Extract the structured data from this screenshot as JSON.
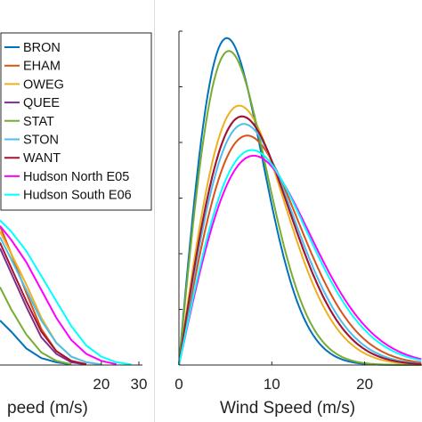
{
  "chart_data": [
    {
      "type": "line",
      "panel": "left (cropped)",
      "xlabel_visible": "peed (m/s)",
      "x_ticks": [
        "20",
        "30"
      ],
      "x_tick_values": [
        20,
        30
      ],
      "xlim": [
        -7,
        30
      ],
      "ylim": [
        0,
        0.12
      ],
      "grid": false,
      "legend": {
        "placement": "top-right",
        "entries": [
          {
            "name": "BRON",
            "color": "#0072BD"
          },
          {
            "name": "EHAM",
            "color": "#D95319"
          },
          {
            "name": "OWEG",
            "color": "#EDB120"
          },
          {
            "name": "QUEE",
            "color": "#7E2F8E"
          },
          {
            "name": "STAT",
            "color": "#77AC30"
          },
          {
            "name": "STON",
            "color": "#4DBEEE"
          },
          {
            "name": "WANT",
            "color": "#A2142F"
          },
          {
            "name": "Hudson North E05",
            "color": "#FF00FF"
          },
          {
            "name": "Hudson South E06",
            "color": "#00FFFF"
          }
        ]
      },
      "series": [
        {
          "name": "BRON",
          "color": "#0072BD",
          "x": [
            -7,
            -4,
            0,
            4,
            8,
            12
          ],
          "y": [
            0.016,
            0.012,
            0.006,
            0.0025,
            0.001,
            0.0002
          ]
        },
        {
          "name": "EHAM",
          "color": "#D95319",
          "x": [
            -7,
            -4,
            0,
            4,
            8,
            12,
            16
          ],
          "y": [
            0.05,
            0.04,
            0.026,
            0.013,
            0.005,
            0.0015,
            0.0003
          ]
        },
        {
          "name": "OWEG",
          "color": "#EDB120",
          "x": [
            -7,
            -4,
            0,
            4,
            8,
            12,
            16,
            20
          ],
          "y": [
            0.048,
            0.04,
            0.029,
            0.017,
            0.008,
            0.003,
            0.001,
            0.0002
          ]
        },
        {
          "name": "QUEE",
          "color": "#7E2F8E",
          "x": [
            -7,
            -4,
            0,
            4,
            8,
            12,
            16
          ],
          "y": [
            0.042,
            0.033,
            0.021,
            0.01,
            0.004,
            0.001,
            0.0002
          ]
        },
        {
          "name": "STAT",
          "color": "#77AC30",
          "x": [
            -7,
            -4,
            0,
            4,
            8,
            12
          ],
          "y": [
            0.028,
            0.02,
            0.011,
            0.0045,
            0.0015,
            0.0003
          ]
        },
        {
          "name": "STON",
          "color": "#4DBEEE",
          "x": [
            -7,
            -4,
            0,
            4,
            8,
            12,
            16,
            20
          ],
          "y": [
            0.046,
            0.038,
            0.027,
            0.016,
            0.008,
            0.003,
            0.001,
            0.0002
          ]
        },
        {
          "name": "WANT",
          "color": "#A2142F",
          "x": [
            -7,
            -4,
            0,
            4,
            8,
            12,
            16
          ],
          "y": [
            0.044,
            0.035,
            0.023,
            0.012,
            0.005,
            0.0015,
            0.0003
          ]
        },
        {
          "name": "Hudson North E05",
          "color": "#FF00FF",
          "x": [
            -7,
            -4,
            0,
            4,
            8,
            12,
            16,
            20,
            24
          ],
          "y": [
            0.05,
            0.045,
            0.037,
            0.027,
            0.017,
            0.009,
            0.004,
            0.0015,
            0.0003
          ]
        },
        {
          "name": "Hudson South E06",
          "color": "#00FFFF",
          "x": [
            -7,
            -4,
            0,
            4,
            8,
            12,
            16,
            20,
            24,
            28
          ],
          "y": [
            0.052,
            0.048,
            0.041,
            0.032,
            0.023,
            0.014,
            0.007,
            0.003,
            0.001,
            0.0002
          ]
        }
      ]
    },
    {
      "type": "line",
      "panel": "right",
      "xlabel": "Wind Speed (m/s)",
      "x_ticks": [
        "0",
        "10",
        "20"
      ],
      "x_tick_values": [
        0,
        10,
        20
      ],
      "xlim": [
        0,
        28
      ],
      "ylim": [
        0,
        0.12
      ],
      "y_tick_values": [
        0.02,
        0.04,
        0.06,
        0.08,
        0.1,
        0.12
      ],
      "grid": false,
      "series": [
        {
          "name": "BRON",
          "color": "#0072BD",
          "k": 2.0,
          "c": 7.3
        },
        {
          "name": "EHAM",
          "color": "#D95319",
          "k": 2.0,
          "c": 10.4
        },
        {
          "name": "OWEG",
          "color": "#EDB120",
          "k": 2.0,
          "c": 9.2
        },
        {
          "name": "QUEE",
          "color": "#7E2F8E",
          "k": 2.0,
          "c": 9.6
        },
        {
          "name": "STAT",
          "color": "#77AC30",
          "k": 2.0,
          "c": 7.6
        },
        {
          "name": "STON",
          "color": "#4DBEEE",
          "k": 2.0,
          "c": 9.9
        },
        {
          "name": "WANT",
          "color": "#A2142F",
          "k": 2.0,
          "c": 9.6
        },
        {
          "name": "Hudson North E05",
          "color": "#FF00FF",
          "k": 2.0,
          "c": 11.4
        },
        {
          "name": "Hudson South E06",
          "color": "#00FFFF",
          "k": 2.0,
          "c": 11.1
        }
      ]
    }
  ]
}
